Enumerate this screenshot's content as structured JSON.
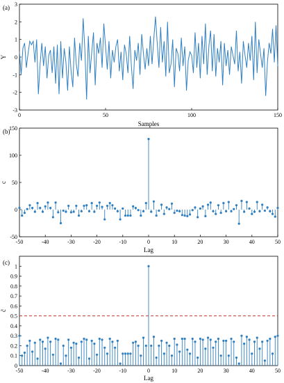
{
  "chart_data": [
    {
      "type": "line",
      "panel_label": "(a)",
      "xlabel": "Samples",
      "ylabel": "Y",
      "xlim": [
        0,
        150
      ],
      "ylim": [
        -3,
        3
      ],
      "xticks": [
        0,
        50,
        100,
        150
      ],
      "yticks": [
        -3,
        -2,
        -1,
        0,
        1,
        2,
        3
      ],
      "color": "#2f7fc1",
      "series": [
        {
          "x": [
            0,
            1,
            2,
            3,
            4,
            5,
            6,
            7,
            8,
            9,
            10,
            11,
            12,
            13,
            14,
            15,
            16,
            17,
            18,
            19,
            20,
            21,
            22,
            23,
            24,
            25,
            26,
            27,
            28,
            29,
            30,
            31,
            32,
            33,
            34,
            35,
            36,
            37,
            38,
            39,
            40,
            41,
            42,
            43,
            44,
            45,
            46,
            47,
            48,
            49,
            50,
            51,
            52,
            53,
            54,
            55,
            56,
            57,
            58,
            59,
            60,
            61,
            62,
            63,
            64,
            65,
            66,
            67,
            68,
            69,
            70,
            71,
            72,
            73,
            74,
            75,
            76,
            77,
            78,
            79,
            80,
            81,
            82,
            83,
            84,
            85,
            86,
            87,
            88,
            89,
            90,
            91,
            92,
            93,
            94,
            95,
            96,
            97,
            98,
            99,
            100,
            101,
            102,
            103,
            104,
            105,
            106,
            107,
            108,
            109,
            110,
            111,
            112,
            113,
            114,
            115,
            116,
            117,
            118,
            119,
            120,
            121,
            122,
            123,
            124,
            125,
            126,
            127,
            128,
            129,
            130,
            131,
            132,
            133,
            134,
            135,
            136,
            137,
            138,
            139,
            140,
            141,
            142,
            143,
            144,
            145,
            146,
            147,
            148,
            149,
            150
          ],
          "values": [
            0.3,
            -1.0,
            0.5,
            0.8,
            -0.6,
            0.2,
            0.9,
            0.7,
            0.9,
            -0.3,
            1.0,
            -2.1,
            -0.4,
            0.8,
            -0.5,
            0.6,
            -1.2,
            0.1,
            0.4,
            -0.9,
            0.6,
            -1.5,
            0.7,
            -2.1,
            0.9,
            -1.2,
            0.5,
            -0.3,
            -1.9,
            0.6,
            -0.8,
            -1.7,
            1.1,
            -0.4,
            -1.1,
            0.8,
            -0.2,
            2.2,
            0.4,
            -2.4,
            1.2,
            -0.9,
            0.3,
            1.4,
            -1.6,
            0.8,
            0.2,
            1.1,
            -0.6,
            1.9,
            0.6,
            -0.7,
            0.9,
            -1.2,
            0.4,
            -0.3,
            0.6,
            1.0,
            -0.8,
            0.3,
            -1.3,
            0.7,
            0.2,
            -0.9,
            1.2,
            -0.5,
            -1.8,
            0.4,
            -0.2,
            0.8,
            -1.0,
            1.3,
            0.2,
            -0.7,
            0.5,
            -0.5,
            1.2,
            -0.4,
            1.0,
            2.3,
            0.8,
            -0.6,
            1.7,
            -0.3,
            0.9,
            -1.1,
            2.0,
            -0.9,
            -0.4,
            1.0,
            -1.7,
            0.5,
            0.2,
            -0.8,
            1.1,
            -0.5,
            0.6,
            -1.9,
            -0.2,
            0.3,
            0.1,
            -0.9,
            1.4,
            -0.6,
            0.8,
            -1.2,
            1.2,
            -0.4,
            1.9,
            -1.0,
            0.6,
            1.5,
            -0.8,
            1.3,
            -1.1,
            0.5,
            -0.3,
            0.9,
            -1.6,
            0.8,
            -0.5,
            0.4,
            -1.0,
            0.6,
            0.1,
            -0.4,
            1.5,
            -0.8,
            0.3,
            -1.5,
            0.9,
            0.1,
            -0.6,
            0.8,
            -0.2,
            1.2,
            -1.3,
            2.0,
            -0.9,
            1.0,
            0.2,
            -0.6,
            0.5,
            -2.2,
            -0.3,
            0.8,
            0.2,
            1.6,
            -0.3,
            1.8,
            -0.5
          ]
        }
      ]
    },
    {
      "type": "stem",
      "panel_label": "(b)",
      "xlabel": "Lag",
      "ylabel": "c",
      "xlim": [
        -50,
        50
      ],
      "ylim": [
        -50,
        150
      ],
      "xticks": [
        -50,
        -40,
        -30,
        -20,
        -10,
        0,
        10,
        20,
        30,
        40,
        50
      ],
      "yticks": [
        -50,
        0,
        50,
        100,
        150
      ],
      "color": "#2f7fc1",
      "series": [
        {
          "x": [
            -50,
            -49,
            -48,
            -47,
            -46,
            -45,
            -44,
            -43,
            -42,
            -41,
            -40,
            -39,
            -38,
            -37,
            -36,
            -35,
            -34,
            -33,
            -32,
            -31,
            -30,
            -29,
            -28,
            -27,
            -26,
            -25,
            -24,
            -23,
            -22,
            -21,
            -20,
            -19,
            -18,
            -17,
            -16,
            -15,
            -14,
            -13,
            -12,
            -11,
            -10,
            -9,
            -8,
            -7,
            -6,
            -5,
            -4,
            -3,
            -2,
            -1,
            0,
            1,
            2,
            3,
            4,
            5,
            6,
            7,
            8,
            9,
            10,
            11,
            12,
            13,
            14,
            15,
            16,
            17,
            18,
            19,
            20,
            21,
            22,
            23,
            24,
            25,
            26,
            27,
            28,
            29,
            30,
            31,
            32,
            33,
            34,
            35,
            36,
            37,
            38,
            39,
            40,
            41,
            42,
            43,
            44,
            45,
            46,
            47,
            48,
            49,
            50
          ],
          "values": [
            3,
            -11,
            -6,
            1,
            8,
            3,
            -4,
            12,
            3,
            -4,
            6,
            13,
            3,
            -14,
            13,
            -5,
            -25,
            -2,
            -4,
            7,
            -5,
            -4,
            7,
            -11,
            -3,
            7,
            8,
            -3,
            12,
            -4,
            7,
            13,
            5,
            -18,
            7,
            12,
            8,
            2,
            -3,
            -18,
            2,
            -11,
            -11,
            -11,
            6,
            3,
            -1,
            -11,
            -3,
            12,
            130,
            -4,
            15,
            -11,
            -2,
            9,
            -8,
            4,
            1,
            11,
            -6,
            -2,
            -3,
            -10,
            -11,
            -12,
            -9,
            -1,
            4,
            -14,
            2,
            6,
            -12,
            9,
            13,
            -3,
            -8,
            8,
            -6,
            12,
            -3,
            14,
            -3,
            1,
            8,
            -26,
            16,
            -4,
            14,
            2,
            -8,
            -4,
            14,
            -3,
            9,
            -2,
            4,
            -3,
            -8,
            -13,
            3
          ]
        }
      ]
    },
    {
      "type": "stem",
      "panel_label": "(c)",
      "xlabel": "Lag",
      "ylabel": "c̃",
      "xlim": [
        -50,
        50
      ],
      "ylim": [
        0,
        1.1
      ],
      "xticks": [
        -50,
        -40,
        -30,
        -20,
        -10,
        0,
        10,
        20,
        30,
        40,
        50
      ],
      "yticks": [
        0,
        0.1,
        0.2,
        0.3,
        0.4,
        0.5,
        0.6,
        0.7,
        0.8,
        0.9,
        1
      ],
      "threshold": 0.5,
      "threshold_color": "#c0392b",
      "color": "#2f7fc1",
      "series": [
        {
          "x": [
            -50,
            -49,
            -48,
            -47,
            -46,
            -45,
            -44,
            -43,
            -42,
            -41,
            -40,
            -39,
            -38,
            -37,
            -36,
            -35,
            -34,
            -33,
            -32,
            -31,
            -30,
            -29,
            -28,
            -27,
            -26,
            -25,
            -24,
            -23,
            -22,
            -21,
            -20,
            -19,
            -18,
            -17,
            -16,
            -15,
            -14,
            -13,
            -12,
            -11,
            -10,
            -9,
            -8,
            -7,
            -6,
            -5,
            -4,
            -3,
            -2,
            -1,
            0,
            1,
            2,
            3,
            4,
            5,
            6,
            7,
            8,
            9,
            10,
            11,
            12,
            13,
            14,
            15,
            16,
            17,
            18,
            19,
            20,
            21,
            22,
            23,
            24,
            25,
            26,
            27,
            28,
            29,
            30,
            31,
            32,
            33,
            34,
            35,
            36,
            37,
            38,
            39,
            40,
            41,
            42,
            43,
            44,
            45,
            46,
            47,
            48,
            49,
            50
          ],
          "values": [
            0.3,
            0.1,
            0.13,
            0.2,
            0.25,
            0.14,
            0.23,
            0.07,
            0.26,
            0.24,
            0.17,
            0.28,
            0.24,
            0.11,
            0.27,
            0.26,
            0.02,
            0.2,
            0.1,
            0.26,
            0.18,
            0.23,
            0.22,
            0.08,
            0.24,
            0.27,
            0.26,
            0.07,
            0.25,
            0.22,
            0.11,
            0.27,
            0.26,
            0.18,
            0.12,
            0.27,
            0.24,
            0.18,
            0.25,
            0.02,
            0.12,
            0.12,
            0.12,
            0.12,
            0.23,
            0.24,
            0.2,
            0.1,
            0.28,
            0.2,
            1.0,
            0.2,
            0.29,
            0.08,
            0.2,
            0.25,
            0.12,
            0.23,
            0.2,
            0.1,
            0.27,
            0.21,
            0.14,
            0.27,
            0.27,
            0.16,
            0.12,
            0.27,
            0.24,
            0.08,
            0.27,
            0.26,
            0.17,
            0.28,
            0.26,
            0.18,
            0.24,
            0.27,
            0.1,
            0.25,
            0.25,
            0.1,
            0.27,
            0.24,
            0.08,
            0.02,
            0.3,
            0.22,
            0.29,
            0.26,
            0.12,
            0.24,
            0.28,
            0.17,
            0.24,
            0.05,
            0.25,
            0.27,
            0.12,
            0.29,
            0.3
          ]
        }
      ]
    }
  ]
}
